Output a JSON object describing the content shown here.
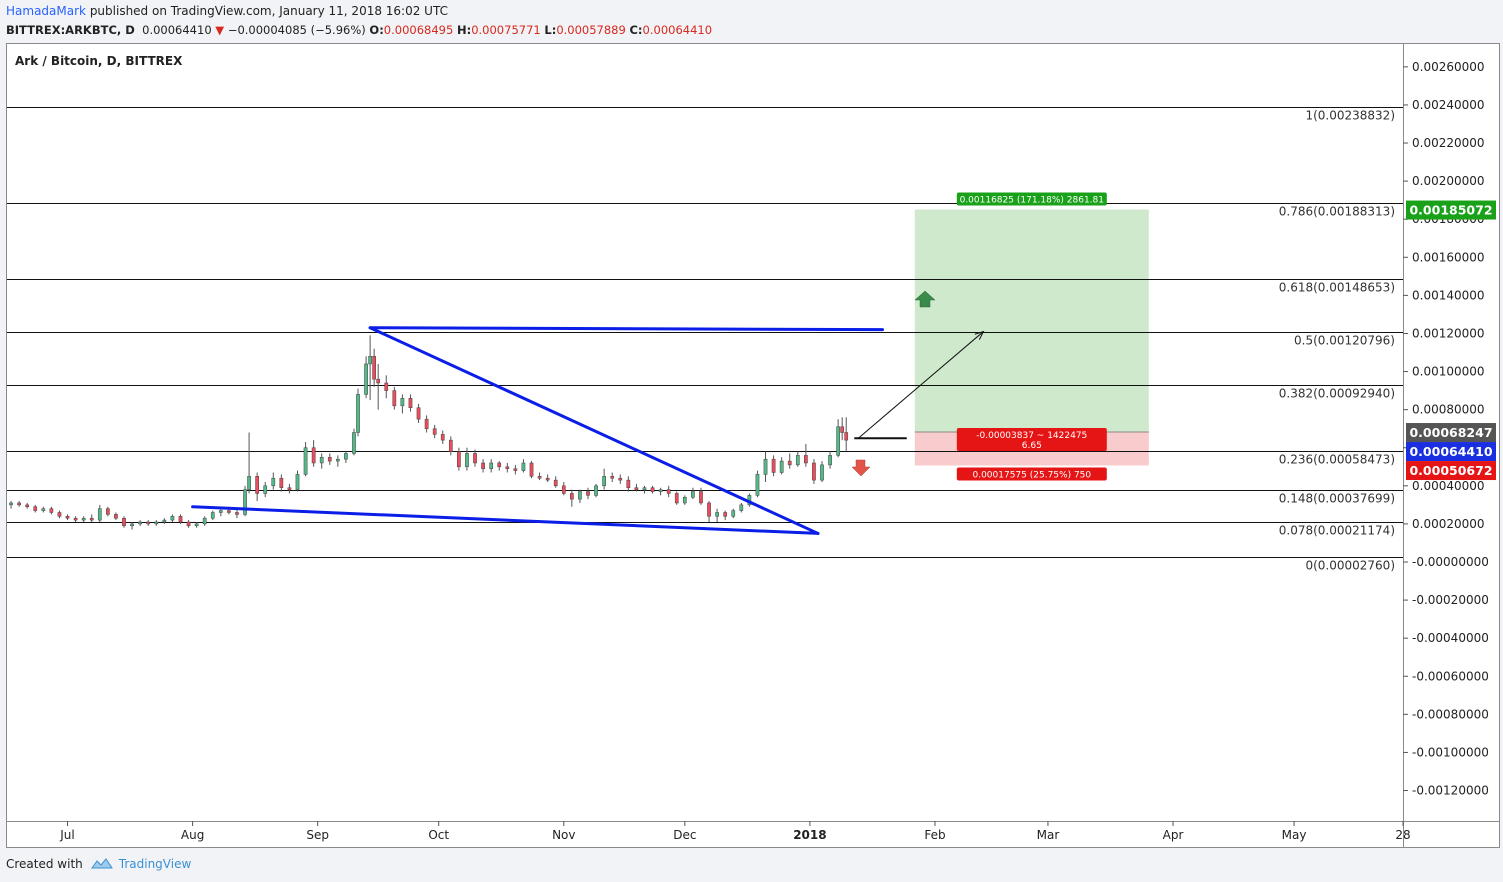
{
  "header": {
    "author": "HamadaMark",
    "published": "published on TradingView.com, January 11, 2018 16:02 UTC",
    "symbol": "BITTREX:ARKBTC, D",
    "last": "0.00064410",
    "change": "−0.00004085 (−5.96%)",
    "o_label": "O:",
    "o": "0.00068495",
    "h_label": "H:",
    "h": "0.00075771",
    "l_label": "L:",
    "l": "0.00057889",
    "c_label": "C:",
    "c": "0.00064410"
  },
  "footer": {
    "created_with": "Created with",
    "brand": "TradingView"
  },
  "colors": {
    "up": "#53b987",
    "down": "#eb4d5c",
    "trend": "#0a1ee8",
    "target_fill": "#cfe9cc",
    "stop_fill": "#f8cccc",
    "green_badge": "#1aa11a",
    "red_badge": "#e61515",
    "blue_badge": "#1a2fe0",
    "gray_badge": "#555555"
  },
  "chart_data": {
    "type": "candlestick",
    "title": "Ark / Bitcoin, D, BITTREX",
    "x_labels": [
      "Jul",
      "Aug",
      "Sep",
      "Oct",
      "Nov",
      "Dec",
      "2018",
      "Feb",
      "Mar",
      "Apr",
      "May",
      "28"
    ],
    "x_dates": [
      "2017-07-01",
      "2017-08-01",
      "2017-09-01",
      "2017-10-01",
      "2017-11-01",
      "2017-12-01",
      "2018-01-01",
      "2018-02-01",
      "2018-03-01",
      "2018-04-01",
      "2018-05-01",
      "2018-05-28"
    ],
    "x_range": [
      "2017-06-16",
      "2018-05-28"
    ],
    "ylim": [
      -0.00136,
      0.00272
    ],
    "y_ticks": [
      "0.00260000",
      "0.00240000",
      "0.00220000",
      "0.00200000",
      "0.00180000",
      "0.00160000",
      "0.00140000",
      "0.00120000",
      "0.00100000",
      "0.00080000",
      "0.00060000",
      "0.00040000",
      "0.00020000",
      "-0.00000000",
      "-0.00020000",
      "-0.00040000",
      "-0.00060000",
      "-0.00080000",
      "-0.00100000",
      "-0.00120000"
    ],
    "fib_levels": [
      {
        "label": "1(0.00238832)",
        "value": 0.00238832
      },
      {
        "label": "0.786(0.00188313)",
        "value": 0.00188313
      },
      {
        "label": "0.618(0.00148653)",
        "value": 0.00148653
      },
      {
        "label": "0.5(0.00120796)",
        "value": 0.00120796
      },
      {
        "label": "0.382(0.00092940)",
        "value": 0.0009294
      },
      {
        "label": "0.236(0.00058473)",
        "value": 0.00058473
      },
      {
        "label": "0.148(0.00037699)",
        "value": 0.00037699
      },
      {
        "label": "0.078(0.00021174)",
        "value": 0.00021174
      },
      {
        "label": "0(0.00002760)",
        "value": 2.76e-05
      }
    ],
    "price_badges": [
      {
        "text": "0.00185072",
        "value": 0.00185072,
        "color": "green"
      },
      {
        "text": "0.00068247",
        "value": 0.00068247,
        "color": "gray"
      },
      {
        "text": "0.00064410",
        "value": 0.0006441,
        "color": "blue"
      },
      {
        "text": "0.00050672",
        "value": 0.00050672,
        "color": "red"
      }
    ],
    "position": {
      "start": "2018-01-27",
      "end": "2018-03-26",
      "entry": 0.00068247,
      "target": 0.00185072,
      "stop": 0.00050672,
      "target_label": "0.00116825 (171.18%) 2861.81",
      "center_label_1": "-0.00003837 ~ 1422475",
      "center_label_2": "6.65",
      "stop_label": "0.00017575 (25.75%) 750"
    },
    "trendlines": [
      {
        "from": [
          "2017-09-14",
          0.00123
        ],
        "to": [
          "2018-01-19",
          0.00122
        ]
      },
      {
        "from": [
          "2017-09-14",
          0.00123
        ],
        "to": [
          "2018-01-03",
          0.00015
        ]
      },
      {
        "from": [
          "2017-08-01",
          0.00029
        ],
        "to": [
          "2018-01-03",
          0.00015
        ]
      }
    ],
    "arrow": {
      "from": [
        "2018-01-13",
        0.00065
      ],
      "to": [
        "2018-02-13",
        0.00121
      ]
    },
    "hline": {
      "from": [
        "2018-01-12",
        0.00065
      ],
      "to": [
        "2018-01-25",
        0.00065
      ]
    },
    "candles": [
      [
        "2017-06-17",
        0.0003,
        0.00032,
        0.00028,
        0.00031
      ],
      [
        "2017-06-19",
        0.00031,
        0.00032,
        0.00029,
        0.0003
      ],
      [
        "2017-06-21",
        0.0003,
        0.00031,
        0.00028,
        0.00029
      ],
      [
        "2017-06-23",
        0.00029,
        0.0003,
        0.00026,
        0.00027
      ],
      [
        "2017-06-25",
        0.00027,
        0.00029,
        0.00026,
        0.00028
      ],
      [
        "2017-06-27",
        0.00028,
        0.00029,
        0.00025,
        0.00026
      ],
      [
        "2017-06-29",
        0.00026,
        0.00027,
        0.00023,
        0.00024
      ],
      [
        "2017-07-01",
        0.00024,
        0.00025,
        0.00022,
        0.00023
      ],
      [
        "2017-07-03",
        0.00023,
        0.00024,
        0.00021,
        0.00022
      ],
      [
        "2017-07-05",
        0.00022,
        0.00024,
        0.00021,
        0.00023
      ],
      [
        "2017-07-07",
        0.00023,
        0.00025,
        0.00021,
        0.00022
      ],
      [
        "2017-07-09",
        0.00022,
        0.0003,
        0.00021,
        0.00028
      ],
      [
        "2017-07-11",
        0.00028,
        0.00029,
        0.00024,
        0.00025
      ],
      [
        "2017-07-13",
        0.00025,
        0.00026,
        0.00022,
        0.00023
      ],
      [
        "2017-07-15",
        0.00023,
        0.00024,
        0.00018,
        0.00019
      ],
      [
        "2017-07-17",
        0.00019,
        0.00021,
        0.00017,
        0.0002
      ],
      [
        "2017-07-19",
        0.0002,
        0.00022,
        0.00019,
        0.00021
      ],
      [
        "2017-07-21",
        0.00021,
        0.00022,
        0.00019,
        0.0002
      ],
      [
        "2017-07-23",
        0.0002,
        0.00022,
        0.00019,
        0.00021
      ],
      [
        "2017-07-25",
        0.00021,
        0.00023,
        0.0002,
        0.00022
      ],
      [
        "2017-07-27",
        0.00022,
        0.00025,
        0.00021,
        0.00024
      ],
      [
        "2017-07-29",
        0.00024,
        0.00025,
        0.0002,
        0.00021
      ],
      [
        "2017-07-31",
        0.00021,
        0.00022,
        0.00018,
        0.00019
      ],
      [
        "2017-08-02",
        0.00019,
        0.00021,
        0.00018,
        0.0002
      ],
      [
        "2017-08-04",
        0.0002,
        0.00024,
        0.00019,
        0.00023
      ],
      [
        "2017-08-06",
        0.00023,
        0.00027,
        0.00022,
        0.00026
      ],
      [
        "2017-08-08",
        0.00026,
        0.00028,
        0.00024,
        0.00027
      ],
      [
        "2017-08-10",
        0.00027,
        0.00029,
        0.00025,
        0.00026
      ],
      [
        "2017-08-12",
        0.00026,
        0.00028,
        0.00023,
        0.00025
      ],
      [
        "2017-08-14",
        0.00025,
        0.0004,
        0.00024,
        0.00038
      ],
      [
        "2017-08-15",
        0.00038,
        0.00068,
        0.00036,
        0.00045
      ],
      [
        "2017-08-17",
        0.00045,
        0.00047,
        0.00032,
        0.00036
      ],
      [
        "2017-08-19",
        0.00036,
        0.00042,
        0.00034,
        0.0004
      ],
      [
        "2017-08-21",
        0.0004,
        0.00047,
        0.00038,
        0.00044
      ],
      [
        "2017-08-23",
        0.00044,
        0.00046,
        0.00037,
        0.00039
      ],
      [
        "2017-08-25",
        0.00039,
        0.00041,
        0.00036,
        0.00038
      ],
      [
        "2017-08-27",
        0.00038,
        0.00048,
        0.00037,
        0.00046
      ],
      [
        "2017-08-29",
        0.00046,
        0.00063,
        0.00045,
        0.0006
      ],
      [
        "2017-08-31",
        0.0006,
        0.00064,
        0.0005,
        0.00052
      ],
      [
        "2017-09-02",
        0.00052,
        0.00057,
        0.00049,
        0.00055
      ],
      [
        "2017-09-04",
        0.00055,
        0.00057,
        0.00051,
        0.00053
      ],
      [
        "2017-09-06",
        0.00053,
        0.00056,
        0.0005,
        0.00054
      ],
      [
        "2017-09-08",
        0.00054,
        0.00058,
        0.00052,
        0.00057
      ],
      [
        "2017-09-10",
        0.00057,
        0.0007,
        0.00056,
        0.00068
      ],
      [
        "2017-09-11",
        0.00068,
        0.00091,
        0.00066,
        0.00088
      ],
      [
        "2017-09-13",
        0.00088,
        0.00108,
        0.00086,
        0.00104
      ],
      [
        "2017-09-14",
        0.00104,
        0.00119,
        0.00085,
        0.00108
      ],
      [
        "2017-09-15",
        0.00108,
        0.00112,
        0.00092,
        0.00096
      ],
      [
        "2017-09-16",
        0.00096,
        0.00104,
        0.0008,
        0.00094
      ],
      [
        "2017-09-18",
        0.00094,
        0.00098,
        0.00086,
        0.0009
      ],
      [
        "2017-09-20",
        0.0009,
        0.00092,
        0.0008,
        0.00082
      ],
      [
        "2017-09-22",
        0.00082,
        0.00088,
        0.00078,
        0.00086
      ],
      [
        "2017-09-24",
        0.00086,
        0.00088,
        0.00079,
        0.00081
      ],
      [
        "2017-09-26",
        0.00081,
        0.00083,
        0.00073,
        0.00075
      ],
      [
        "2017-09-28",
        0.00075,
        0.00077,
        0.00068,
        0.0007
      ],
      [
        "2017-09-30",
        0.0007,
        0.00072,
        0.00065,
        0.00067
      ],
      [
        "2017-10-02",
        0.00067,
        0.00069,
        0.00062,
        0.00064
      ],
      [
        "2017-10-04",
        0.00064,
        0.00066,
        0.00056,
        0.00058
      ],
      [
        "2017-10-06",
        0.00058,
        0.0006,
        0.00048,
        0.0005
      ],
      [
        "2017-10-08",
        0.0005,
        0.0006,
        0.00048,
        0.00057
      ],
      [
        "2017-10-10",
        0.00057,
        0.00059,
        0.0005,
        0.00052
      ],
      [
        "2017-10-12",
        0.00052,
        0.00054,
        0.00047,
        0.00049
      ],
      [
        "2017-10-14",
        0.00049,
        0.00054,
        0.00047,
        0.00052
      ],
      [
        "2017-10-16",
        0.00052,
        0.00053,
        0.00048,
        0.0005
      ],
      [
        "2017-10-18",
        0.0005,
        0.00052,
        0.00047,
        0.00049
      ],
      [
        "2017-10-20",
        0.00049,
        0.00051,
        0.00046,
        0.00048
      ],
      [
        "2017-10-22",
        0.00048,
        0.00054,
        0.00047,
        0.00052
      ],
      [
        "2017-10-24",
        0.00052,
        0.00053,
        0.00044,
        0.00045
      ],
      [
        "2017-10-26",
        0.00045,
        0.00047,
        0.00043,
        0.00044
      ],
      [
        "2017-10-28",
        0.00044,
        0.00046,
        0.00042,
        0.00043
      ],
      [
        "2017-10-30",
        0.00043,
        0.00045,
        0.00039,
        0.0004
      ],
      [
        "2017-11-01",
        0.0004,
        0.00042,
        0.00035,
        0.00036
      ],
      [
        "2017-11-03",
        0.00036,
        0.00038,
        0.00029,
        0.00033
      ],
      [
        "2017-11-05",
        0.00033,
        0.00038,
        0.00031,
        0.00037
      ],
      [
        "2017-11-07",
        0.00037,
        0.00039,
        0.00033,
        0.00035
      ],
      [
        "2017-11-09",
        0.00035,
        0.00041,
        0.00034,
        0.0004
      ],
      [
        "2017-11-11",
        0.0004,
        0.00049,
        0.00038,
        0.00045
      ],
      [
        "2017-11-13",
        0.00045,
        0.00047,
        0.00042,
        0.00044
      ],
      [
        "2017-11-15",
        0.00044,
        0.00046,
        0.00041,
        0.00043
      ],
      [
        "2017-11-17",
        0.00043,
        0.00045,
        0.00037,
        0.00039
      ],
      [
        "2017-11-19",
        0.00039,
        0.00041,
        0.00037,
        0.00038
      ],
      [
        "2017-11-21",
        0.00038,
        0.0004,
        0.00036,
        0.00039
      ],
      [
        "2017-11-23",
        0.00039,
        0.0004,
        0.00036,
        0.00037
      ],
      [
        "2017-11-25",
        0.00037,
        0.00039,
        0.00035,
        0.00038
      ],
      [
        "2017-11-27",
        0.00038,
        0.0004,
        0.00034,
        0.00036
      ],
      [
        "2017-11-29",
        0.00036,
        0.00037,
        0.0003,
        0.00031
      ],
      [
        "2017-12-01",
        0.00031,
        0.00035,
        0.0003,
        0.00034
      ],
      [
        "2017-12-03",
        0.00034,
        0.00039,
        0.00033,
        0.00037
      ],
      [
        "2017-12-05",
        0.00037,
        0.00039,
        0.0003,
        0.00031
      ],
      [
        "2017-12-07",
        0.00031,
        0.00032,
        0.00021,
        0.00024
      ],
      [
        "2017-12-09",
        0.00024,
        0.00028,
        0.00021,
        0.00026
      ],
      [
        "2017-12-11",
        0.00026,
        0.00027,
        0.00022,
        0.00024
      ],
      [
        "2017-12-13",
        0.00024,
        0.00028,
        0.00023,
        0.00027
      ],
      [
        "2017-12-15",
        0.00027,
        0.00031,
        0.00026,
        0.0003
      ],
      [
        "2017-12-17",
        0.0003,
        0.00036,
        0.00029,
        0.00035
      ],
      [
        "2017-12-19",
        0.00035,
        0.00048,
        0.00034,
        0.00046
      ],
      [
        "2017-12-21",
        0.00046,
        0.00058,
        0.00042,
        0.00054
      ],
      [
        "2017-12-23",
        0.00054,
        0.00056,
        0.00045,
        0.00047
      ],
      [
        "2017-12-25",
        0.00047,
        0.00055,
        0.00046,
        0.00053
      ],
      [
        "2017-12-27",
        0.00053,
        0.00057,
        0.00049,
        0.00051
      ],
      [
        "2017-12-29",
        0.00051,
        0.00058,
        0.0005,
        0.00056
      ],
      [
        "2017-12-31",
        0.00056,
        0.00062,
        0.0005,
        0.00052
      ],
      [
        "2018-01-02",
        0.00052,
        0.00054,
        0.00041,
        0.00043
      ],
      [
        "2018-01-04",
        0.00043,
        0.00053,
        0.00042,
        0.00051
      ],
      [
        "2018-01-06",
        0.00051,
        0.00058,
        0.00049,
        0.00056
      ],
      [
        "2018-01-08",
        0.00056,
        0.00075,
        0.00055,
        0.00071
      ],
      [
        "2018-01-09",
        0.00071,
        0.00076,
        0.00064,
        0.00068
      ],
      [
        "2018-01-10",
        0.00068,
        0.00076,
        0.00058,
        0.00064
      ]
    ]
  }
}
